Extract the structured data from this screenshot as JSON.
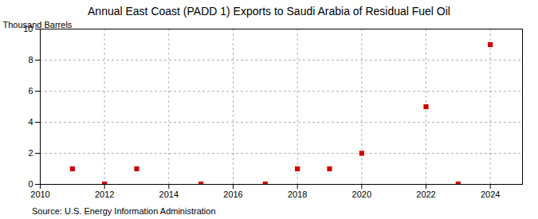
{
  "chart_data": {
    "type": "scatter",
    "title": "Annual East Coast (PADD 1) Exports to Saudi Arabia of Residual Fuel Oil",
    "ylabel": "Thousand Barrels",
    "source": "Source: U.S. Energy Information Administration",
    "x": [
      2011,
      2012,
      2013,
      2015,
      2017,
      2018,
      2019,
      2020,
      2022,
      2023,
      2024
    ],
    "values": [
      1,
      0.02,
      1,
      0.02,
      0.02,
      1,
      1,
      2,
      5,
      0.02,
      9
    ],
    "color": "#cc0000",
    "marker": "square",
    "xlim": [
      2010,
      2025
    ],
    "ylim": [
      0,
      10
    ],
    "xticks": [
      2010,
      2012,
      2014,
      2016,
      2018,
      2020,
      2022,
      2024
    ],
    "yticks": [
      0,
      2,
      4,
      6,
      8,
      10
    ],
    "grid": true
  }
}
